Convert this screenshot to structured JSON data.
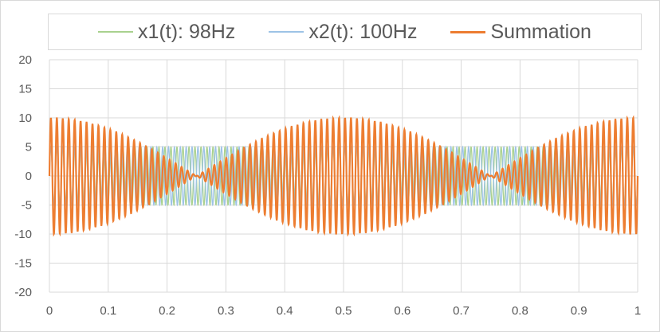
{
  "chart_data": {
    "type": "line",
    "title": "",
    "xlabel": "",
    "ylabel": "",
    "xlim": [
      0,
      1
    ],
    "ylim": [
      -20,
      20
    ],
    "x_ticks": [
      "0",
      "0.1",
      "0.2",
      "0.3",
      "0.4",
      "0.5",
      "0.6",
      "0.7",
      "0.8",
      "0.9",
      "1"
    ],
    "y_ticks": [
      "20",
      "15",
      "10",
      "5",
      "0",
      "-5",
      "-10",
      "-15",
      "-20"
    ],
    "grid": true,
    "legend_position": "top",
    "series": [
      {
        "name": "x1(t): 98Hz",
        "amplitude": 5,
        "frequency_hz": 98,
        "color": "#a9d18e"
      },
      {
        "name": "x2(t): 100Hz",
        "amplitude": 5,
        "frequency_hz": 100,
        "color": "#9dc3e6"
      },
      {
        "name": "Summation",
        "amplitude": 10,
        "envelope_frequency_hz": 2,
        "color": "#ed7d31"
      }
    ]
  }
}
